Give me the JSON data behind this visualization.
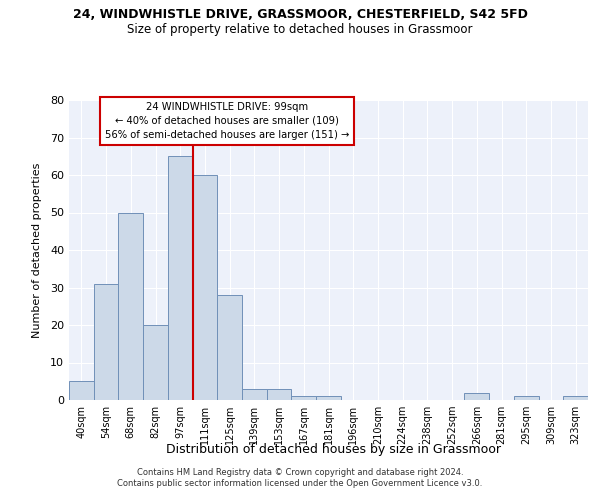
{
  "title": "24, WINDWHISTLE DRIVE, GRASSMOOR, CHESTERFIELD, S42 5FD",
  "subtitle": "Size of property relative to detached houses in Grassmoor",
  "xlabel": "Distribution of detached houses by size in Grassmoor",
  "ylabel": "Number of detached properties",
  "bar_color": "#ccd9e8",
  "bar_edge_color": "#7090b8",
  "highlight_color": "#cc0000",
  "background_color": "#edf1fa",
  "grid_color": "#ffffff",
  "categories": [
    "40sqm",
    "54sqm",
    "68sqm",
    "82sqm",
    "97sqm",
    "111sqm",
    "125sqm",
    "139sqm",
    "153sqm",
    "167sqm",
    "181sqm",
    "196sqm",
    "210sqm",
    "224sqm",
    "238sqm",
    "252sqm",
    "266sqm",
    "281sqm",
    "295sqm",
    "309sqm",
    "323sqm"
  ],
  "values": [
    5,
    31,
    50,
    20,
    65,
    60,
    28,
    3,
    3,
    1,
    1,
    0,
    0,
    0,
    0,
    0,
    2,
    0,
    1,
    0,
    1
  ],
  "ylim": [
    0,
    80
  ],
  "yticks": [
    0,
    10,
    20,
    30,
    40,
    50,
    60,
    70,
    80
  ],
  "property_label": "24 WINDWHISTLE DRIVE: 99sqm",
  "annotation_line1": "← 40% of detached houses are smaller (109)",
  "annotation_line2": "56% of semi-detached houses are larger (151) →",
  "red_line_index": 4,
  "footer1": "Contains HM Land Registry data © Crown copyright and database right 2024.",
  "footer2": "Contains public sector information licensed under the Open Government Licence v3.0."
}
